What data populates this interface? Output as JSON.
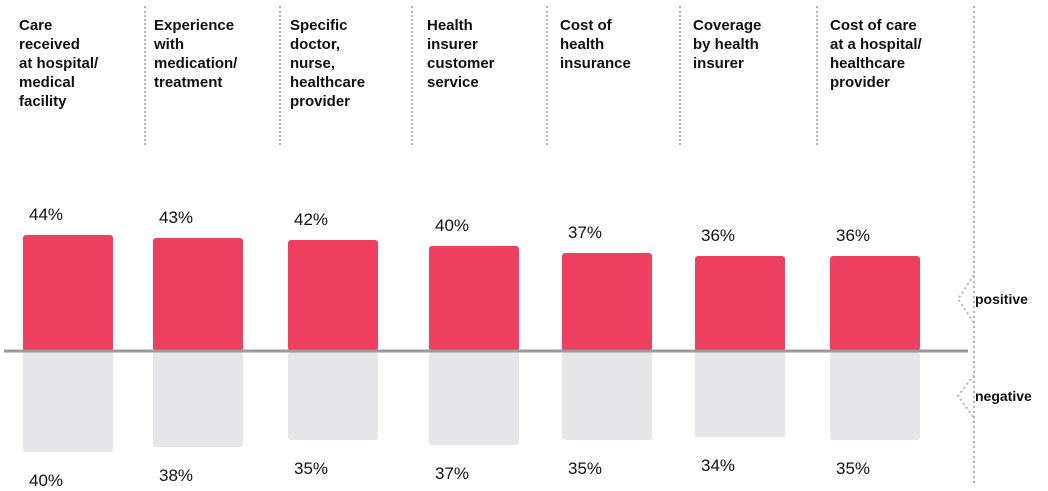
{
  "chart_data": {
    "type": "bar",
    "categories": [
      "Care\nreceived\nat hospital/\nmedical\nfacility",
      "Experience\nwith\nmedication/\ntreatment",
      "Specific\ndoctor,\nnurse,\nhealthcare\nprovider",
      "Health\ninsurer\ncustomer\nservice",
      "Cost of\nhealth\ninsurance",
      "Coverage\nby health\ninsurer",
      "Cost of care\nat a hospital/\nhealthcare\nprovider"
    ],
    "series": [
      {
        "name": "positive",
        "values": [
          44,
          43,
          42,
          40,
          37,
          36,
          36
        ],
        "labels": [
          "44%",
          "43%",
          "42%",
          "40%",
          "37%",
          "36%",
          "36%"
        ]
      },
      {
        "name": "negative",
        "values": [
          40,
          38,
          35,
          37,
          35,
          34,
          35
        ],
        "labels": [
          "40%",
          "38%",
          "35%",
          "37%",
          "35%",
          "34%",
          "35%"
        ]
      }
    ],
    "colors": {
      "positive": "#ef3f5f",
      "negative": "#e6e6e8",
      "axis": "#9a9a9a",
      "separator": "#b5b5b5"
    },
    "side_labels": {
      "positive": "positive",
      "negative": "negative"
    }
  }
}
